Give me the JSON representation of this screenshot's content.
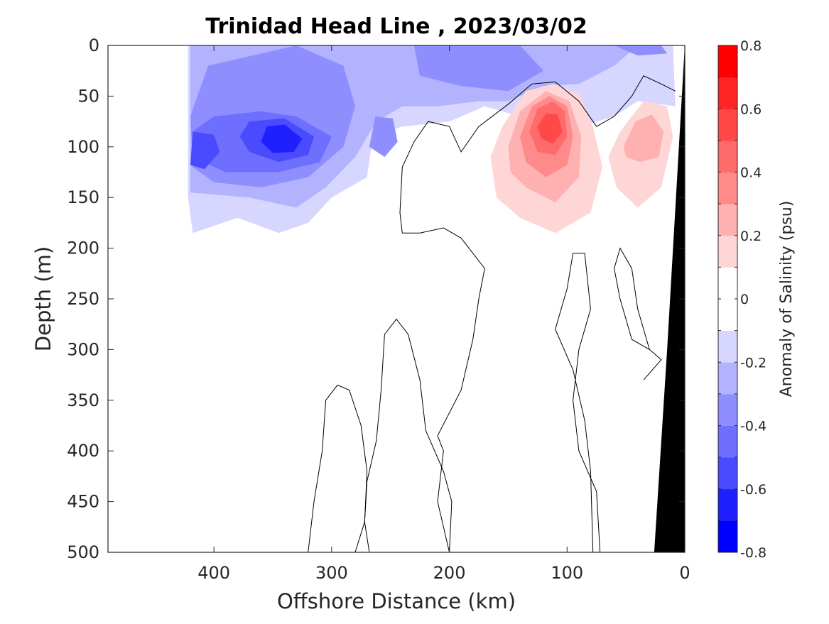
{
  "chart_data": {
    "type": "heatmap",
    "subtype": "filled contour section",
    "title": "Trinidad Head Line , 2023/03/02",
    "xlabel": "Offshore Distance (km)",
    "ylabel": "Depth (m)",
    "xlim": [
      490,
      0
    ],
    "ylim": [
      0,
      500
    ],
    "x_reversed": true,
    "y_reversed": true,
    "xticks": [
      400,
      300,
      200,
      100,
      0
    ],
    "yticks": [
      0,
      50,
      100,
      150,
      200,
      250,
      300,
      350,
      400,
      450,
      500
    ],
    "grid": false,
    "colorbar": {
      "label": "Anomaly of Salinity (psu)",
      "range": [
        -0.8,
        0.8
      ],
      "levels": [
        -0.8,
        -0.7,
        -0.6,
        -0.5,
        -0.4,
        -0.3,
        -0.2,
        -0.1,
        0,
        0.1,
        0.2,
        0.3,
        0.4,
        0.5,
        0.6,
        0.7,
        0.8
      ],
      "ticks": [
        0.8,
        0.6,
        0.4,
        0.2,
        0,
        -0.2,
        -0.4,
        -0.6,
        -0.8
      ],
      "colors": [
        "#0000ff",
        "#2020ff",
        "#4a4aff",
        "#6e6eff",
        "#8e8eff",
        "#b2b2ff",
        "#d6d6ff",
        "#ffffff",
        "#ffffff",
        "#ffd6d6",
        "#ffb0b0",
        "#ff8a8a",
        "#ff6a6a",
        "#ff4848",
        "#ff2424",
        "#ff0000"
      ]
    },
    "features": [
      {
        "kind": "negative",
        "anomaly": -0.65,
        "x_center": 340,
        "depth_center": 95,
        "x_span": [
          420,
          270
        ],
        "depth_span": [
          0,
          185
        ]
      },
      {
        "kind": "negative",
        "anomaly": -0.55,
        "x_center": 410,
        "depth_center": 105
      },
      {
        "kind": "negative",
        "anomaly": -0.3,
        "x_center": 150,
        "depth_center": 20,
        "x_span": [
          270,
          10
        ],
        "depth_span": [
          0,
          80
        ]
      },
      {
        "kind": "positive",
        "anomaly": 0.55,
        "x_center": 112,
        "depth_center": 80,
        "x_span": [
          165,
          70
        ],
        "depth_span": [
          40,
          185
        ]
      },
      {
        "kind": "positive",
        "anomaly": 0.3,
        "x_center": 35,
        "depth_center": 90,
        "x_span": [
          65,
          8
        ],
        "depth_span": [
          55,
          160
        ]
      }
    ],
    "zero_contour_present": true,
    "bathymetry": {
      "color": "#000000",
      "shore_km": 0
    }
  }
}
